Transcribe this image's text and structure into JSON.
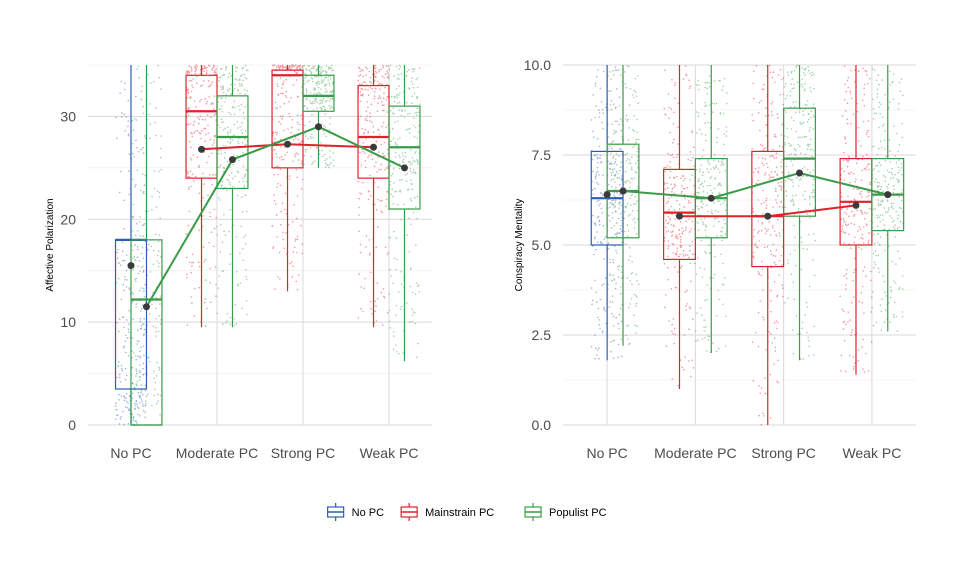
{
  "chart_data": [
    {
      "type": "box",
      "ylabel": "Affective Polarization",
      "ylim": [
        0,
        35
      ],
      "yticks": [
        "0",
        "10",
        "20",
        "30"
      ],
      "categories": [
        "No PC",
        "Moderate PC",
        "Strong PC",
        "Weak PC"
      ],
      "grid": true,
      "series": [
        {
          "name": "No PC",
          "color": "#2b5fad",
          "boxes": [
            {
              "category": "No PC",
              "min": 0,
              "q1": 3.5,
              "median": 18,
              "q3": 18,
              "max": 35,
              "mean": 15.5
            }
          ]
        },
        {
          "name": "Mainstrain PC",
          "color": "#e0222d",
          "boxes": [
            {
              "category": "Moderate PC",
              "min": 9.5,
              "q1": 24,
              "median": 30.5,
              "q3": 34,
              "max": 35,
              "mean": 26.8
            },
            {
              "category": "Strong PC",
              "min": 13,
              "q1": 25,
              "median": 34,
              "q3": 34.5,
              "max": 35,
              "mean": 27.3
            },
            {
              "category": "Weak PC",
              "min": 9.5,
              "q1": 24,
              "median": 28,
              "q3": 33,
              "max": 35,
              "mean": 27
            }
          ]
        },
        {
          "name": "Populist PC",
          "color": "#3a9b49",
          "boxes": [
            {
              "category": "No PC",
              "min": 0,
              "q1": 0,
              "median": 12.2,
              "q3": 18,
              "max": 35,
              "mean": 11.5
            },
            {
              "category": "Moderate PC",
              "min": 9.5,
              "q1": 23,
              "median": 28,
              "q3": 32,
              "max": 35,
              "mean": 25.8
            },
            {
              "category": "Strong PC",
              "min": 25,
              "q1": 30.5,
              "median": 32,
              "q3": 34,
              "max": 35,
              "mean": 29
            },
            {
              "category": "Weak PC",
              "min": 6.2,
              "q1": 21,
              "median": 27,
              "q3": 31,
              "max": 35,
              "mean": 25
            }
          ]
        }
      ]
    },
    {
      "type": "box",
      "ylabel": "Conspiracy Mentality",
      "ylim": [
        0,
        10
      ],
      "yticks": [
        "0.0",
        "2.5",
        "5.0",
        "7.5",
        "10.0"
      ],
      "categories": [
        "No PC",
        "Moderate PC",
        "Strong PC",
        "Weak PC"
      ],
      "grid": true,
      "series": [
        {
          "name": "No PC",
          "color": "#2b5fad",
          "boxes": [
            {
              "category": "No PC",
              "min": 1.8,
              "q1": 5,
              "median": 6.3,
              "q3": 7.6,
              "max": 10,
              "mean": 6.4
            }
          ]
        },
        {
          "name": "Mainstrain PC",
          "color": "#e0222d",
          "boxes": [
            {
              "category": "Moderate PC",
              "min": 1,
              "q1": 4.6,
              "median": 5.9,
              "q3": 7.1,
              "max": 10,
              "mean": 5.8
            },
            {
              "category": "Strong PC",
              "min": 0,
              "q1": 4.4,
              "median": 5.8,
              "q3": 7.6,
              "max": 10,
              "mean": 5.8
            },
            {
              "category": "Weak PC",
              "min": 1.4,
              "q1": 5,
              "median": 6.2,
              "q3": 7.4,
              "max": 10,
              "mean": 6.1
            }
          ]
        },
        {
          "name": "Populist PC",
          "color": "#3a9b49",
          "boxes": [
            {
              "category": "No PC",
              "min": 2.2,
              "q1": 5.2,
              "median": 6.5,
              "q3": 7.8,
              "max": 10,
              "mean": 6.5
            },
            {
              "category": "Moderate PC",
              "min": 2,
              "q1": 5.2,
              "median": 6.3,
              "q3": 7.4,
              "max": 10,
              "mean": 6.3
            },
            {
              "category": "Strong PC",
              "min": 1.8,
              "q1": 5.8,
              "median": 7.4,
              "q3": 8.8,
              "max": 10,
              "mean": 7
            },
            {
              "category": "Weak PC",
              "min": 2.6,
              "q1": 5.4,
              "median": 6.4,
              "q3": 7.4,
              "max": 10,
              "mean": 6.4
            }
          ]
        }
      ]
    }
  ],
  "legend": {
    "position": "bottom",
    "items": [
      {
        "label": "No PC",
        "color": "#2b5fad"
      },
      {
        "label": "Mainstrain PC",
        "color": "#e0222d"
      },
      {
        "label": "Populist PC",
        "color": "#3a9b49"
      }
    ]
  }
}
